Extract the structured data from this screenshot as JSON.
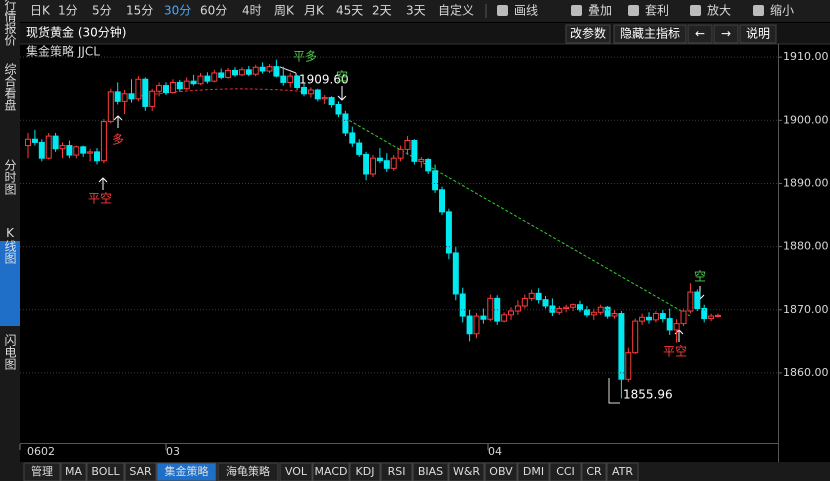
{
  "toolbar": {
    "items": [
      "日K",
      "1分",
      "5分",
      "15分",
      "30分",
      "60分",
      "4时",
      "周K",
      "月K",
      "45天",
      "2天",
      "3天",
      "自定义"
    ],
    "tools": [
      "画线",
      "叠加",
      "套利",
      "放大",
      "缩小"
    ]
  },
  "side_tabs": [
    "行情报价",
    "综合看盘",
    "分时图",
    "K线图",
    "闪电图"
  ],
  "header": {
    "title": "现货黄金 (30分钟)",
    "buttons": [
      "改参数",
      "隐藏主指标",
      "←",
      "→",
      "说明"
    ]
  },
  "chart": {
    "type": "candlestick",
    "title": "集金策略 JJCL",
    "up_color": "#ff3c3c",
    "down_color": "#00e8f0",
    "ylim": [
      1848.9,
      1914.3
    ],
    "yticks": [
      {
        "value": 1860,
        "label": "1860.00"
      },
      {
        "value": 1870,
        "label": "1870.00"
      },
      {
        "value": 1880,
        "label": "1880.00"
      },
      {
        "value": 1890,
        "label": "1890.00"
      },
      {
        "value": 1900,
        "label": "1900.00"
      },
      {
        "value": 1910,
        "label": "1910.00"
      }
    ],
    "grid": true,
    "x_labels": [
      "0602",
      "03",
      "04"
    ],
    "annotations": [
      "平多",
      "1909.60",
      "空",
      "多",
      "平空",
      "1855.96",
      "平空",
      "空"
    ],
    "ohlc": [
      [
        1896,
        1898,
        1894,
        1897
      ],
      [
        1897,
        1898.5,
        1896,
        1896.5
      ],
      [
        1896.5,
        1897,
        1893.5,
        1894
      ],
      [
        1894,
        1898,
        1893.8,
        1897.5
      ],
      [
        1897.5,
        1898,
        1895,
        1895.5
      ],
      [
        1895.5,
        1896.5,
        1894,
        1896
      ],
      [
        1896,
        1896.8,
        1894,
        1894.5
      ],
      [
        1894.5,
        1896,
        1894,
        1895.8
      ],
      [
        1895.8,
        1896,
        1894.2,
        1894.8
      ],
      [
        1894.8,
        1895.5,
        1893.5,
        1895
      ],
      [
        1895,
        1895.6,
        1893,
        1893.6
      ],
      [
        1893.6,
        1900.2,
        1893.2,
        1899.8
      ],
      [
        1899.8,
        1905,
        1899.5,
        1904.5
      ],
      [
        1904.5,
        1906,
        1902.5,
        1903
      ],
      [
        1903,
        1904.8,
        1901,
        1904.2
      ],
      [
        1904.2,
        1906.5,
        1902.8,
        1903.4
      ],
      [
        1903.4,
        1907,
        1903,
        1906.5
      ],
      [
        1906.5,
        1906.8,
        1901.5,
        1902.2
      ],
      [
        1902.2,
        1905,
        1901.5,
        1904.6
      ],
      [
        1904.6,
        1906,
        1903.8,
        1905.5
      ],
      [
        1905.5,
        1906,
        1904,
        1904.4
      ],
      [
        1904.4,
        1906.5,
        1904.2,
        1906
      ],
      [
        1906,
        1906.4,
        1904.5,
        1905
      ],
      [
        1905,
        1906.8,
        1904.8,
        1906.2
      ],
      [
        1906.2,
        1907.2,
        1905.5,
        1905.8
      ],
      [
        1905.8,
        1907.5,
        1905.6,
        1907
      ],
      [
        1907,
        1907.6,
        1905.8,
        1906.2
      ],
      [
        1906.2,
        1908,
        1906,
        1907.5
      ],
      [
        1907.5,
        1908.2,
        1906.5,
        1906.8
      ],
      [
        1906.8,
        1908.3,
        1906.6,
        1907.9
      ],
      [
        1907.9,
        1908.4,
        1906.9,
        1907.2
      ],
      [
        1907.2,
        1908.4,
        1907,
        1908
      ],
      [
        1908,
        1908.6,
        1907,
        1907.3
      ],
      [
        1907.3,
        1908.8,
        1907,
        1908.4
      ],
      [
        1908.4,
        1909.2,
        1907.4,
        1907.8
      ],
      [
        1907.8,
        1908.9,
        1907.5,
        1908.5
      ],
      [
        1908.5,
        1909.6,
        1906.8,
        1907
      ],
      [
        1907,
        1908.5,
        1905.5,
        1906
      ],
      [
        1906,
        1907.5,
        1905.2,
        1907
      ],
      [
        1907,
        1907.2,
        1904.8,
        1905.2
      ],
      [
        1905.2,
        1905.8,
        1903.8,
        1904.2
      ],
      [
        1904.2,
        1905.2,
        1903.6,
        1904.8
      ],
      [
        1904.8,
        1905,
        1903,
        1903.4
      ],
      [
        1903.4,
        1904,
        1902.6,
        1903.6
      ],
      [
        1903.6,
        1903.8,
        1902,
        1902.5
      ],
      [
        1902.5,
        1903,
        1900.5,
        1901
      ],
      [
        1901,
        1901.5,
        1897.5,
        1898
      ],
      [
        1898,
        1899,
        1895.8,
        1896.4
      ],
      [
        1896.4,
        1897,
        1894.2,
        1894.6
      ],
      [
        1894.6,
        1895,
        1890.5,
        1891.5
      ],
      [
        1891.5,
        1894.5,
        1891,
        1894
      ],
      [
        1894,
        1895.6,
        1893.2,
        1893.6
      ],
      [
        1893.6,
        1894.8,
        1891.8,
        1892.4
      ],
      [
        1892.4,
        1894.5,
        1892,
        1894
      ],
      [
        1894,
        1896,
        1893.5,
        1895.4
      ],
      [
        1895.4,
        1897.5,
        1894.5,
        1896.8
      ],
      [
        1896.8,
        1897,
        1893,
        1893.5
      ],
      [
        1893.5,
        1894.2,
        1892.5,
        1893.8
      ],
      [
        1893.8,
        1894,
        1891.5,
        1892
      ],
      [
        1892,
        1893,
        1888.5,
        1889
      ],
      [
        1889,
        1889.5,
        1885,
        1885.5
      ],
      [
        1885.5,
        1886,
        1878,
        1879
      ],
      [
        1879,
        1880,
        1871.5,
        1872.5
      ],
      [
        1872.5,
        1873.5,
        1868,
        1869
      ],
      [
        1869,
        1870,
        1865,
        1866.2
      ],
      [
        1866.2,
        1869.5,
        1865.5,
        1869
      ],
      [
        1869,
        1870.2,
        1867.8,
        1868.5
      ],
      [
        1868.5,
        1872.4,
        1868.2,
        1871.8
      ],
      [
        1871.8,
        1872.3,
        1867.6,
        1868.2
      ],
      [
        1868.2,
        1869.6,
        1868,
        1869.2
      ],
      [
        1869.2,
        1870.4,
        1868.4,
        1869.8
      ],
      [
        1869.8,
        1871.5,
        1869.2,
        1870.6
      ],
      [
        1870.6,
        1872.4,
        1870.2,
        1871.8
      ],
      [
        1871.8,
        1873.2,
        1871.4,
        1872.6
      ],
      [
        1872.6,
        1873.4,
        1871,
        1871.6
      ],
      [
        1871.6,
        1872.2,
        1870.2,
        1870.6
      ],
      [
        1870.6,
        1871.8,
        1869,
        1869.6
      ],
      [
        1869.6,
        1870.6,
        1869.2,
        1870.2
      ],
      [
        1870.2,
        1870.8,
        1869.6,
        1870.4
      ],
      [
        1870.4,
        1871,
        1869.8,
        1870.8
      ],
      [
        1870.8,
        1871.4,
        1869.6,
        1870
      ],
      [
        1870,
        1870.6,
        1868.8,
        1869.2
      ],
      [
        1869.2,
        1870.2,
        1868.4,
        1869.6
      ],
      [
        1869.6,
        1870.8,
        1869.2,
        1870.4
      ],
      [
        1870.4,
        1870.6,
        1868.6,
        1869
      ],
      [
        1869,
        1870,
        1868.6,
        1869.4
      ],
      [
        1869.4,
        1869.8,
        1855.96,
        1859
      ],
      [
        1859,
        1864,
        1858.6,
        1863.2
      ],
      [
        1863.2,
        1868.6,
        1863,
        1868.2
      ],
      [
        1868.2,
        1869.4,
        1867.6,
        1868.8
      ],
      [
        1868.8,
        1869.6,
        1867.8,
        1868.4
      ],
      [
        1868.4,
        1869.8,
        1868,
        1869.4
      ],
      [
        1869.4,
        1870,
        1868,
        1868.6
      ],
      [
        1868.6,
        1870.2,
        1866,
        1866.8
      ],
      [
        1866.8,
        1868.5,
        1864.8,
        1867.8
      ],
      [
        1867.8,
        1870.2,
        1867.4,
        1869.8
      ],
      [
        1869.8,
        1874.2,
        1869.4,
        1872.8
      ],
      [
        1872.8,
        1873.2,
        1869.8,
        1870.2
      ],
      [
        1870.2,
        1870.8,
        1868,
        1868.6
      ],
      [
        1868.6,
        1869.4,
        1868.2,
        1869
      ],
      [
        1869,
        1869.4,
        1868.8,
        1869.1
      ]
    ]
  },
  "bottom_tabs": [
    "管理",
    "MA",
    "BOLL",
    "SAR",
    "集金策略",
    "海龟策略",
    "VOL",
    "MACD",
    "KDJ",
    "RSI",
    "BIAS",
    "W&R",
    "OBV",
    "DMI",
    "CCI",
    "CR",
    "ATR"
  ]
}
